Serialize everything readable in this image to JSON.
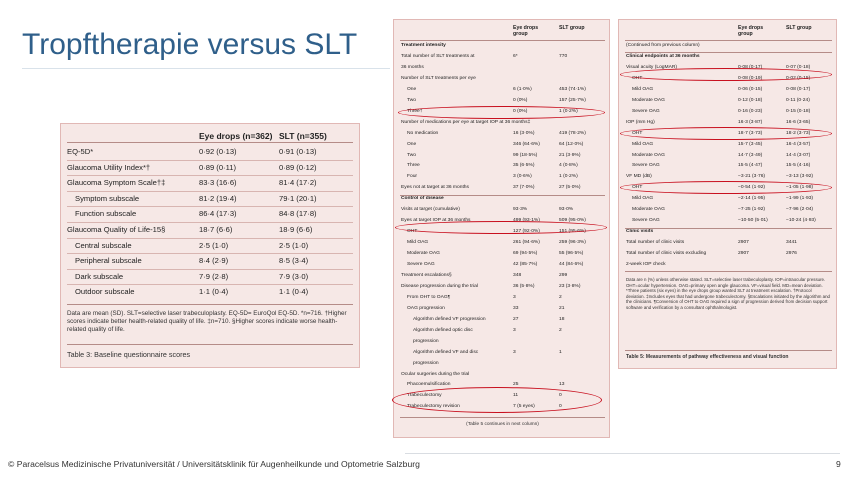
{
  "slide": {
    "title": "Tropftherapie versus SLT",
    "footer": "© Paracelsus Medizinische Privatuniversität / Universitätsklinik für Augenheilkunde und Optometrie Salzburg",
    "page_number": "9"
  },
  "table3": {
    "col1": "Eye drops (n=362)",
    "col2": "SLT (n=355)",
    "rows": [
      {
        "label": "EQ-5D*",
        "c1": "0·92 (0·13)",
        "c2": "0·91 (0·13)"
      },
      {
        "label": "Glaucoma Utility Index*†",
        "c1": "0·89 (0·11)",
        "c2": "0·89 (0·12)"
      },
      {
        "label": "Glaucoma Symptom Scale†‡",
        "c1": "83·3 (16·6)",
        "c2": "81·4 (17·2)"
      },
      {
        "label": "Symptom subscale",
        "c1": "81·2 (19·4)",
        "c2": "79·1 (20·1)"
      },
      {
        "label": "Function subscale",
        "c1": "86·4 (17·3)",
        "c2": "84·8 (17·8)"
      },
      {
        "label": "Glaucoma Quality of Life-15§",
        "c1": "18·7 (6·6)",
        "c2": "18·9 (6·6)"
      },
      {
        "label": "Central subscale",
        "c1": "2·5 (1·0)",
        "c2": "2·5 (1·0)"
      },
      {
        "label": "Peripheral subscale",
        "c1": "8·4 (2·9)",
        "c2": "8·5 (3·4)"
      },
      {
        "label": "Dark subscale",
        "c1": "7·9 (2·8)",
        "c2": "7·9 (3·0)"
      },
      {
        "label": "Outdoor subscale",
        "c1": "1·1 (0·4)",
        "c2": "1·1 (0·4)"
      }
    ],
    "note": "Data are mean (SD). SLT=selective laser trabeculoplasty. EQ-5D= EuroQol EQ-5D. *n=716. †Higher scores indicate better health-related quality of life. ‡n=710. §Higher scores indicate worse health-related quality of life.",
    "caption": "Table 3: Baseline questionnaire scores"
  },
  "table5a": {
    "col1": "Eye drops group",
    "col2": "SLT group",
    "rows": [
      {
        "label": "Treatment intensity",
        "a": "",
        "b": "",
        "type": "sub"
      },
      {
        "label": "Total number of SLT treatments at",
        "a": "6*",
        "b": "770",
        "type": "row"
      },
      {
        "label": "36 months",
        "a": "",
        "b": "",
        "type": "row"
      },
      {
        "label": "Number of SLT treatments per eye",
        "a": "",
        "b": "",
        "type": "row"
      },
      {
        "label": "One",
        "a": "6 (1·0%)",
        "b": "453 (74·1%)",
        "type": "i1"
      },
      {
        "label": "Two",
        "a": "0 (0%)",
        "b": "157 (25·7%)",
        "type": "i1"
      },
      {
        "label": "Three†",
        "a": "0 (0%)",
        "b": "1 (0·2%)",
        "type": "i1"
      },
      {
        "label": "Number of medications per eye at target IOP at 36 months‡",
        "a": "",
        "b": "",
        "type": "row"
      },
      {
        "label": "No medication",
        "a": "16 (3·0%)",
        "b": "419 (78·2%)",
        "type": "i1"
      },
      {
        "label": "One",
        "a": "346 (64·6%)",
        "b": "64 (12·0%)",
        "type": "i1"
      },
      {
        "label": "Two",
        "a": "99 (18·5%)",
        "b": "21 (3·9%)",
        "type": "i1"
      },
      {
        "label": "Three",
        "a": "35 (6·5%)",
        "b": "4 (0·8%)",
        "type": "i1"
      },
      {
        "label": "Four",
        "a": "3 (0·6%)",
        "b": "1 (0·2%)",
        "type": "i1"
      },
      {
        "label": "Eyes not at target at 36 months",
        "a": "37 (7·0%)",
        "b": "27 (5·0%)",
        "type": "row"
      },
      {
        "label": "Control of disease",
        "a": "",
        "b": "",
        "type": "sub"
      },
      {
        "label": "Visits at target (cumulative)",
        "a": "93·3%",
        "b": "93·0%",
        "type": "row"
      },
      {
        "label": "Eyes at target IOP at 36 months",
        "a": "499 (93·1%)",
        "b": "509 (95·0%)",
        "type": "row"
      },
      {
        "label": "OHT",
        "a": "127 (92·0%)",
        "b": "151 (95·6%)",
        "type": "i1"
      },
      {
        "label": "Mild OAG",
        "a": "261 (94·6%)",
        "b": "259 (96·3%)",
        "type": "i1"
      },
      {
        "label": "Moderate OAG",
        "a": "69 (94·5%)",
        "b": "55 (96·5%)",
        "type": "i1"
      },
      {
        "label": "Severe OAG",
        "a": "42 (85·7%)",
        "b": "44 (84·6%)",
        "type": "i1"
      },
      {
        "label": "Treatment escalations§",
        "a": "348",
        "b": "299",
        "type": "row"
      },
      {
        "label": "Disease progression during the trial",
        "a": "36 (5·8%)",
        "b": "23 (3·8%)",
        "type": "row"
      },
      {
        "label": "From OHT to OAG¶",
        "a": "3",
        "b": "2",
        "type": "i1"
      },
      {
        "label": "OAG progression",
        "a": "33",
        "b": "21",
        "type": "i1"
      },
      {
        "label": "Algorithm defined VF progression",
        "a": "27",
        "b": "18",
        "type": "i2"
      },
      {
        "label": "Algorithm defined optic disc",
        "a": "3",
        "b": "2",
        "type": "i2"
      },
      {
        "label": "progression",
        "a": "",
        "b": "",
        "type": "i2"
      },
      {
        "label": "Algorithm defined VF and disc",
        "a": "3",
        "b": "1",
        "type": "i2"
      },
      {
        "label": "progression",
        "a": "",
        "b": "",
        "type": "i2"
      },
      {
        "label": "Ocular surgeries during the trial",
        "a": "",
        "b": "",
        "type": "row"
      },
      {
        "label": "Phacoemulsification",
        "a": "25",
        "b": "13",
        "type": "i1"
      },
      {
        "label": "Trabeculectomy",
        "a": "11",
        "b": "0",
        "type": "i1"
      },
      {
        "label": "Trabeculectomy revision",
        "a": "7 (5 eyes)",
        "b": "0",
        "type": "i1"
      }
    ],
    "continues": "(Table 5 continues in next column)"
  },
  "table5b": {
    "col1": "Eye drops group",
    "col2": "SLT group",
    "rows": [
      {
        "label": "(Continued from previous column)",
        "a": "",
        "b": "",
        "type": "row"
      },
      {
        "label": "Clinical endpoints at 36 months",
        "a": "",
        "b": "",
        "type": "sub"
      },
      {
        "label": "Visual acuity (LogMAR)",
        "a": "0·08 (0·17)",
        "b": "0·07 (0·18)",
        "type": "row"
      },
      {
        "label": "OHT",
        "a": "0·08 (0·19)",
        "b": "0·02 (0·15)",
        "type": "i1"
      },
      {
        "label": "Mild OAG",
        "a": "0·06 (0·15)",
        "b": "0·08 (0·17)",
        "type": "i1"
      },
      {
        "label": "Moderate OAG",
        "a": "0·12 (0·18)",
        "b": "0·11 (0·24)",
        "type": "i1"
      },
      {
        "label": "Severe OAG",
        "a": "0·16 (0·23)",
        "b": "0·15 (0·18)",
        "type": "i1"
      },
      {
        "label": "IOP (mm Hg)",
        "a": "16·3 (3·87)",
        "b": "16·6 (3·65)",
        "type": "row"
      },
      {
        "label": "OHT",
        "a": "18·7 (3·73)",
        "b": "18·2 (3·73)",
        "type": "i1"
      },
      {
        "label": "Mild OAG",
        "a": "15·7 (3·45)",
        "b": "16·4 (3·57)",
        "type": "i1"
      },
      {
        "label": "Moderate OAG",
        "a": "14·7 (3·49)",
        "b": "14·4 (3·07)",
        "type": "i1"
      },
      {
        "label": "Severe OAG",
        "a": "15·5 (4·47)",
        "b": "15·5 (4·16)",
        "type": "i1"
      },
      {
        "label": "VF MD (dB)",
        "a": "−3·21 (3·76)",
        "b": "−3·13 (3·92)",
        "type": "row"
      },
      {
        "label": "OHT",
        "a": "−0·54 (1·92)",
        "b": "−1·05 (1·98)",
        "type": "i1"
      },
      {
        "label": "Mild OAG",
        "a": "−2·14 (1·95)",
        "b": "−1·99 (1·93)",
        "type": "i1"
      },
      {
        "label": "Moderate OAG",
        "a": "−7·25 (1·92)",
        "b": "−7·96 (2·04)",
        "type": "i1"
      },
      {
        "label": "Severe OAG",
        "a": "−10·50 (5·01)",
        "b": "−10·24 (4·93)",
        "type": "i1"
      },
      {
        "label": "Clinic visits",
        "a": "",
        "b": "",
        "type": "sub"
      },
      {
        "label": "Total number of clinic visits",
        "a": "2907",
        "b": "3441",
        "type": "row"
      },
      {
        "label": "Total number of clinic visits excluding",
        "a": "2907",
        "b": "2976",
        "type": "row"
      },
      {
        "label": "2-week IOP check",
        "a": "",
        "b": "",
        "type": "row"
      }
    ],
    "note": "Data are n (%) unless otherwise stated. SLT=selective laser trabeculoplasty. IOP=intraocular pressure. OHT=ocular hypertension. OAG=primary open angle glaucoma. VF=visual field. MD=mean deviation. *Three patients (six eyes) in the eye drops group wanted SLT at treatment escalation. †Protocol deviation. ‡Includes eyes that had undergone trabeculectomy. §Escalations initiated by the algorithm and the clinicians. ¶Conversion of OHT to OAG required a sign of progression derived from decision support software and verification by a consultant ophthalmologist.",
    "caption": "Table 5: Measurements of pathway effectiveness and visual function"
  }
}
